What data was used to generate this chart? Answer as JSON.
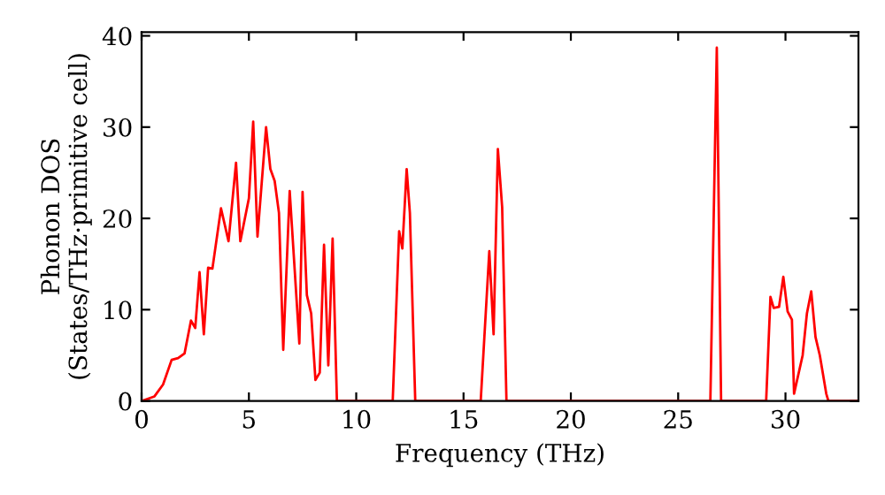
{
  "chart_data": {
    "type": "line",
    "xlabel": "Frequency (THz)",
    "ylabel": "Phonon DOS\n(States/THz·primitive cell)",
    "x": [
      0,
      0.6,
      1.0,
      1.4,
      1.7,
      2.0,
      2.3,
      2.5,
      2.7,
      2.9,
      3.1,
      3.3,
      3.7,
      4.05,
      4.4,
      4.6,
      5.0,
      5.2,
      5.4,
      5.8,
      6.0,
      6.2,
      6.4,
      6.6,
      6.9,
      7.35,
      7.5,
      7.7,
      7.9,
      8.1,
      8.3,
      8.5,
      8.7,
      8.9,
      9.1,
      11.7,
      12.0,
      12.15,
      12.35,
      12.5,
      12.75,
      15.8,
      16.2,
      16.4,
      16.6,
      16.8,
      17.0,
      26.5,
      26.8,
      27.0,
      29.1,
      29.3,
      29.45,
      29.7,
      29.9,
      30.1,
      30.3,
      30.4,
      30.8,
      31.0,
      31.2,
      31.4,
      31.6,
      31.9,
      32.0,
      33.4
    ],
    "series": [
      {
        "color": "#ff0000",
        "values": [
          0,
          0.5,
          1.8,
          4.5,
          4.7,
          5.2,
          8.8,
          8.0,
          14.1,
          7.3,
          14.6,
          14.5,
          21.1,
          17.5,
          26.1,
          17.5,
          22.2,
          30.6,
          18,
          30,
          25.4,
          24.1,
          20.6,
          5.6,
          23,
          6.3,
          22.9,
          11.6,
          9.6,
          2.3,
          3.1,
          17.1,
          3.9,
          17.8,
          0,
          0,
          18.6,
          16.7,
          25.4,
          20.6,
          0,
          0,
          16.4,
          7.3,
          27.6,
          21.2,
          0,
          0,
          38.7,
          0,
          0,
          11.4,
          10.2,
          10.3,
          13.6,
          9.8,
          8.9,
          0.8,
          5.0,
          9.6,
          12.0,
          7.0,
          5.0,
          0.8,
          0,
          0
        ]
      }
    ],
    "xlim": [
      0,
      33.4
    ],
    "ylim": [
      0,
      40.4
    ],
    "xticks": [
      0,
      5,
      10,
      15,
      20,
      25,
      30
    ],
    "yticks": [
      0,
      10,
      20,
      30,
      40
    ],
    "grid": false,
    "legend": false,
    "marker": "none",
    "line_style": "solid"
  }
}
